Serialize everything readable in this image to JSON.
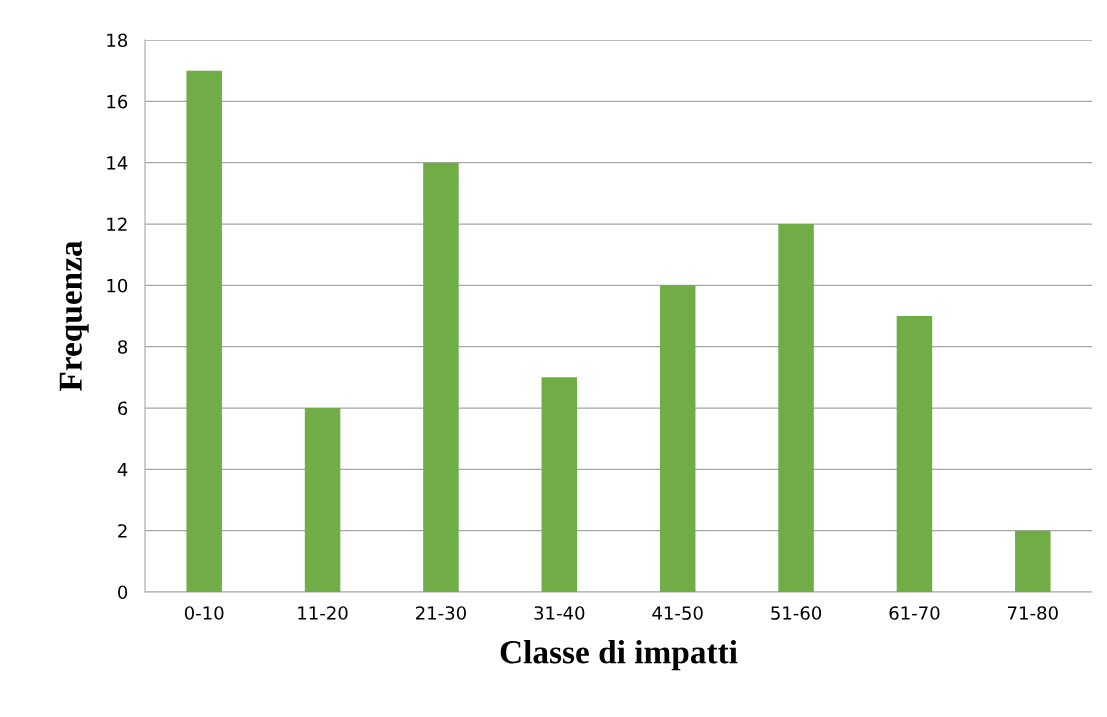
{
  "chart_data": {
    "type": "bar",
    "xlabel": "Classe di impatti",
    "ylabel": "Frequenza",
    "categories": [
      "0-10",
      "11-20",
      "21-30",
      "31-40",
      "41-50",
      "51-60",
      "61-70",
      "71-80"
    ],
    "values": [
      17,
      6,
      14,
      7,
      10,
      12,
      9,
      2
    ],
    "color": "#70ad47",
    "ylim": [
      0,
      18
    ],
    "yticks": [
      0,
      2,
      4,
      6,
      8,
      10,
      12,
      14,
      16,
      18
    ],
    "grid": "y",
    "legend": false
  }
}
